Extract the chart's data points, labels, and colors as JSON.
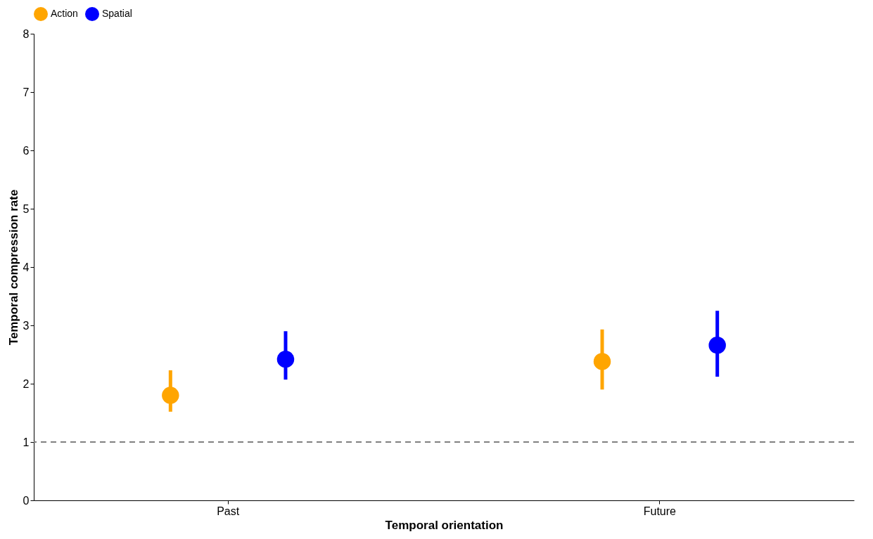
{
  "chart_data": {
    "type": "scatter",
    "xlabel": "Temporal orientation",
    "ylabel": "Temporal compression rate",
    "categories": [
      "Past",
      "Future"
    ],
    "series": [
      {
        "name": "Action",
        "color": "#ffa500",
        "values": [
          1.8,
          2.38
        ],
        "errors": [
          [
            1.52,
            2.23
          ],
          [
            1.9,
            2.93
          ]
        ]
      },
      {
        "name": "Spatial",
        "color": "#0000ff",
        "values": [
          2.42,
          2.66
        ],
        "errors": [
          [
            2.07,
            2.9
          ],
          [
            2.12,
            3.25
          ]
        ]
      }
    ],
    "ylim": [
      0,
      8
    ],
    "yticks": [
      0,
      1,
      2,
      3,
      4,
      5,
      6,
      7,
      8
    ],
    "grid": false,
    "legend": "top",
    "marker": "circle",
    "ref_lines": [
      {
        "axis": "y",
        "value": 1,
        "color": "#808080",
        "line_style": "dashed"
      }
    ]
  }
}
